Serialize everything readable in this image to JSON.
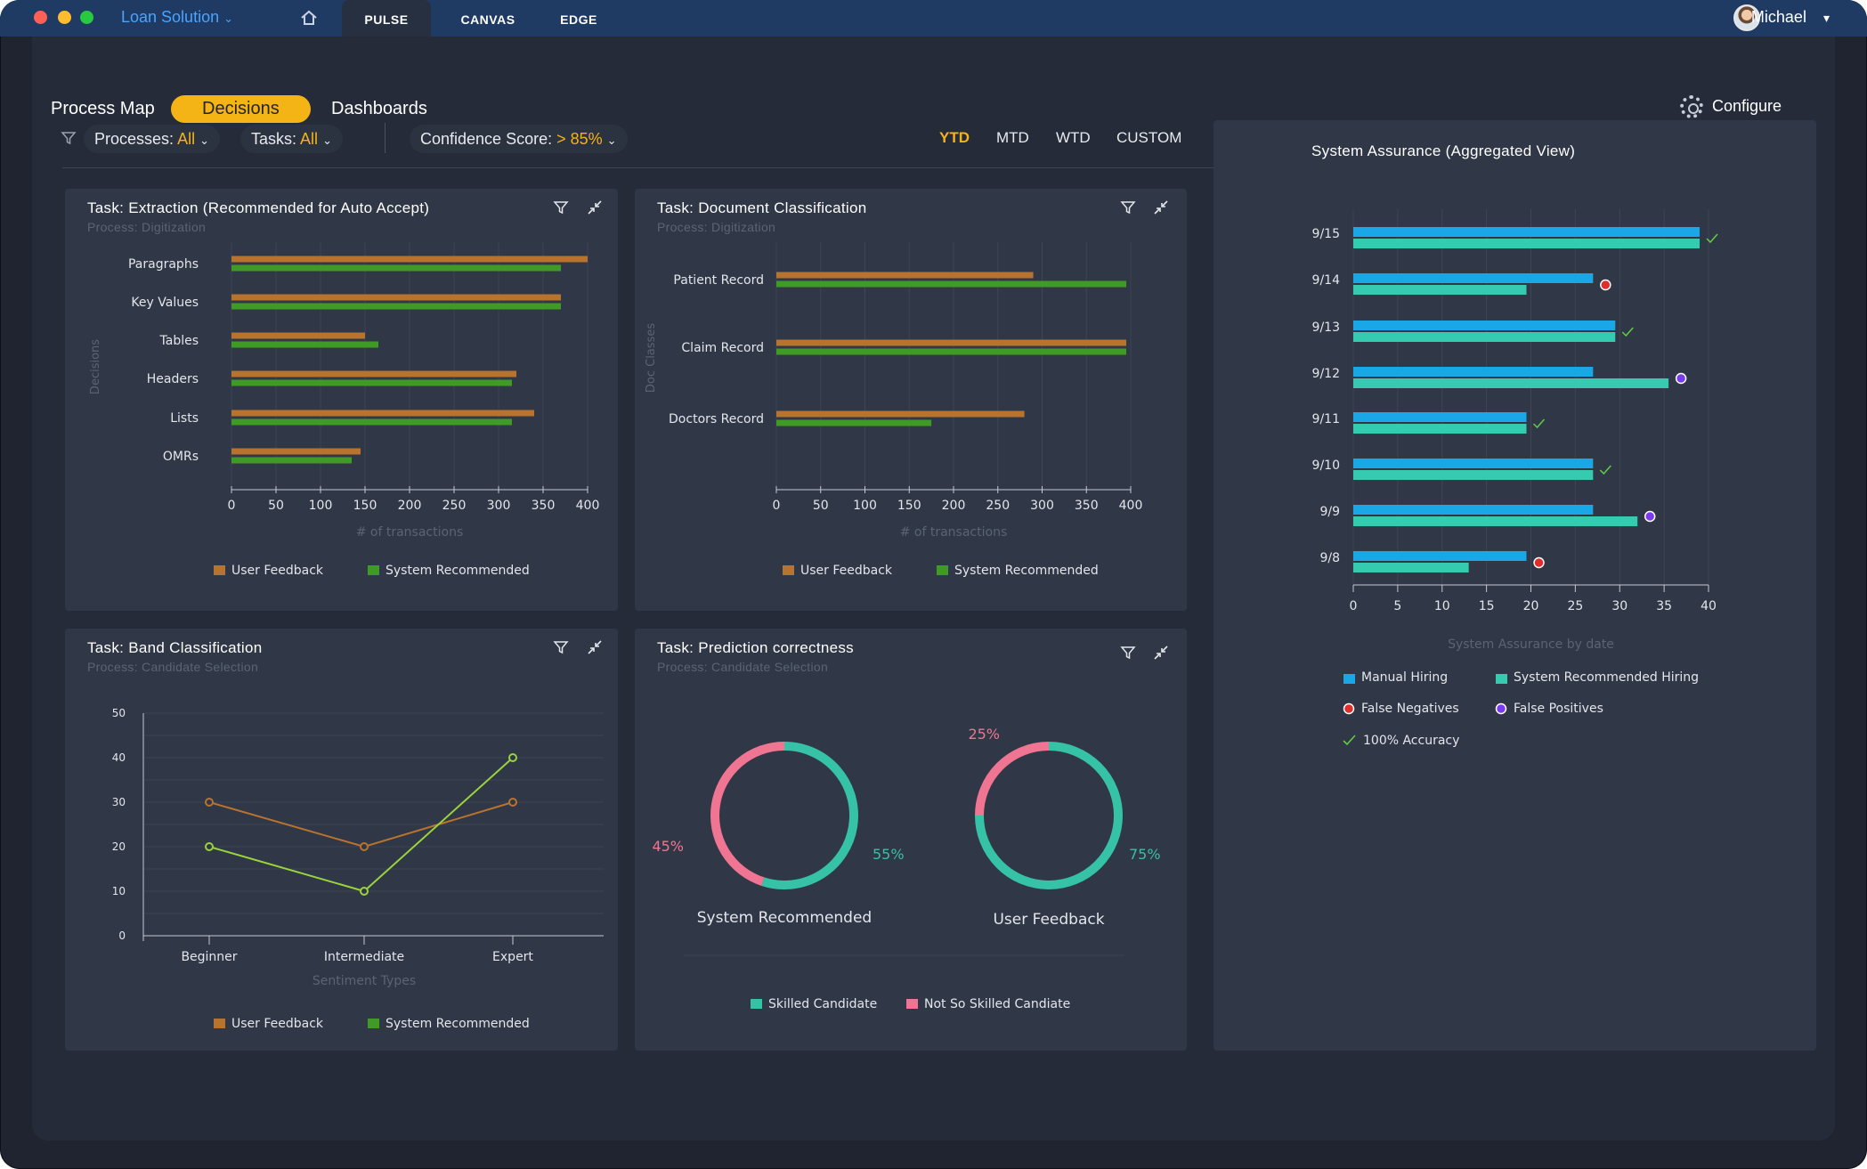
{
  "app": {
    "name": "Loan Solution",
    "user": "Michael"
  },
  "top_tabs": [
    "PULSE",
    "CANVAS",
    "EDGE"
  ],
  "sub_nav": [
    "Process Map",
    "Decisions",
    "Dashboards"
  ],
  "configure_label": "Configure",
  "filters": {
    "processes_label": "Processes:",
    "processes_value": "All",
    "tasks_label": "Tasks:",
    "tasks_value": "All",
    "confidence_label": "Confidence Score:",
    "confidence_value": "> 85%"
  },
  "ranges": [
    "YTD",
    "MTD",
    "WTD",
    "CUSTOM"
  ],
  "colors": {
    "user_feedback": "#b8732f",
    "system_recommended": "#3f9b25",
    "manual": "#1aa7e8",
    "system_hiring": "#35cbb0",
    "skilled": "#35c2a6",
    "not_skilled": "#f07592",
    "green_line": "#9ad43c",
    "accent": "#f5b415"
  },
  "panels": {
    "extraction": {
      "title": "Task: Extraction (Recommended for Auto Accept)",
      "subtitle": "Process: Digitization"
    },
    "doc_class": {
      "title": "Task: Document Classification",
      "subtitle": "Process: Digitization"
    },
    "band": {
      "title": "Task: Band Classification",
      "subtitle": "Process: Candidate Selection"
    },
    "prediction": {
      "title": "Task: Prediction correctness",
      "subtitle": "Process: Candidate Selection"
    },
    "assurance": {
      "title": "System Assurance (Aggregated View)"
    }
  },
  "chart_data": [
    {
      "type": "bar",
      "orientation": "horizontal",
      "categories": [
        "Paragraphs",
        "Key Values",
        "Tables",
        "Headers",
        "Lists",
        "OMRs"
      ],
      "series": [
        {
          "name": "User Feedback",
          "values": [
            400,
            370,
            150,
            320,
            340,
            145
          ]
        },
        {
          "name": "System Recommended",
          "values": [
            370,
            370,
            165,
            315,
            315,
            135
          ]
        }
      ],
      "xlabel": "# of transactions",
      "ylabel": "Decisions",
      "xlim": [
        0,
        400
      ],
      "xticks": [
        0,
        50,
        100,
        150,
        200,
        250,
        300,
        350,
        400
      ],
      "legend": "bottom"
    },
    {
      "type": "bar",
      "orientation": "horizontal",
      "categories": [
        "Patient Record",
        "Claim Record",
        "Doctors Record"
      ],
      "series": [
        {
          "name": "User Feedback",
          "values": [
            290,
            395,
            280
          ]
        },
        {
          "name": "System Recommended",
          "values": [
            395,
            395,
            175
          ]
        }
      ],
      "xlabel": "# of transactions",
      "ylabel": "Doc Classes",
      "xlim": [
        0,
        400
      ],
      "xticks": [
        0,
        50,
        100,
        150,
        200,
        250,
        300,
        350,
        400
      ],
      "legend": "bottom"
    },
    {
      "type": "line",
      "categories": [
        "Beginner",
        "Intermediate",
        "Expert"
      ],
      "series": [
        {
          "name": "User Feedback",
          "values": [
            30,
            20,
            30
          ]
        },
        {
          "name": "System Recommended",
          "values": [
            20,
            10,
            40
          ]
        }
      ],
      "xlabel": "Sentiment Types",
      "ylabel": "",
      "ylim": [
        0,
        50
      ],
      "yticks": [
        0,
        10,
        20,
        30,
        40,
        50
      ],
      "grid": true,
      "legend": "bottom"
    },
    {
      "type": "pie",
      "variant": "donut",
      "charts": [
        {
          "name": "System Recommended",
          "slices": [
            {
              "label": "Skilled Candidate",
              "value": 55
            },
            {
              "label": "Not So Skilled Candiate",
              "value": 45
            }
          ],
          "labels": [
            "55%",
            "45%"
          ]
        },
        {
          "name": "User Feedback",
          "slices": [
            {
              "label": "Skilled Candidate",
              "value": 75
            },
            {
              "label": "Not So Skilled Candiate",
              "value": 25
            }
          ],
          "labels": [
            "75%",
            "25%"
          ]
        }
      ],
      "legend_labels": [
        "Skilled Candidate",
        "Not So Skilled Candiate"
      ],
      "legend": "bottom"
    },
    {
      "type": "bar",
      "orientation": "horizontal",
      "categories": [
        "9/15",
        "9/14",
        "9/13",
        "9/12",
        "9/11",
        "9/10",
        "9/9",
        "9/8"
      ],
      "series": [
        {
          "name": "Manual Hiring",
          "values": [
            39,
            27,
            29.5,
            27,
            19.5,
            27,
            27,
            19.5
          ]
        },
        {
          "name": "System Recommended Hiring",
          "values": [
            39,
            19.5,
            29.5,
            35.5,
            19.5,
            27,
            32,
            13
          ]
        }
      ],
      "markers": [
        "100% Accuracy",
        "False Negatives",
        "100% Accuracy",
        "False Positives",
        "100% Accuracy",
        "100% Accuracy",
        "False Positives",
        "False Negatives"
      ],
      "xlabel": "System Assurance by date",
      "xlim": [
        0,
        40
      ],
      "xticks": [
        0,
        5,
        10,
        15,
        20,
        25,
        30,
        35,
        40
      ],
      "legend_labels": [
        "Manual Hiring",
        "System Recommended Hiring",
        "False Negatives",
        "False Positives",
        "100% Accuracy"
      ],
      "legend": "bottom"
    }
  ]
}
